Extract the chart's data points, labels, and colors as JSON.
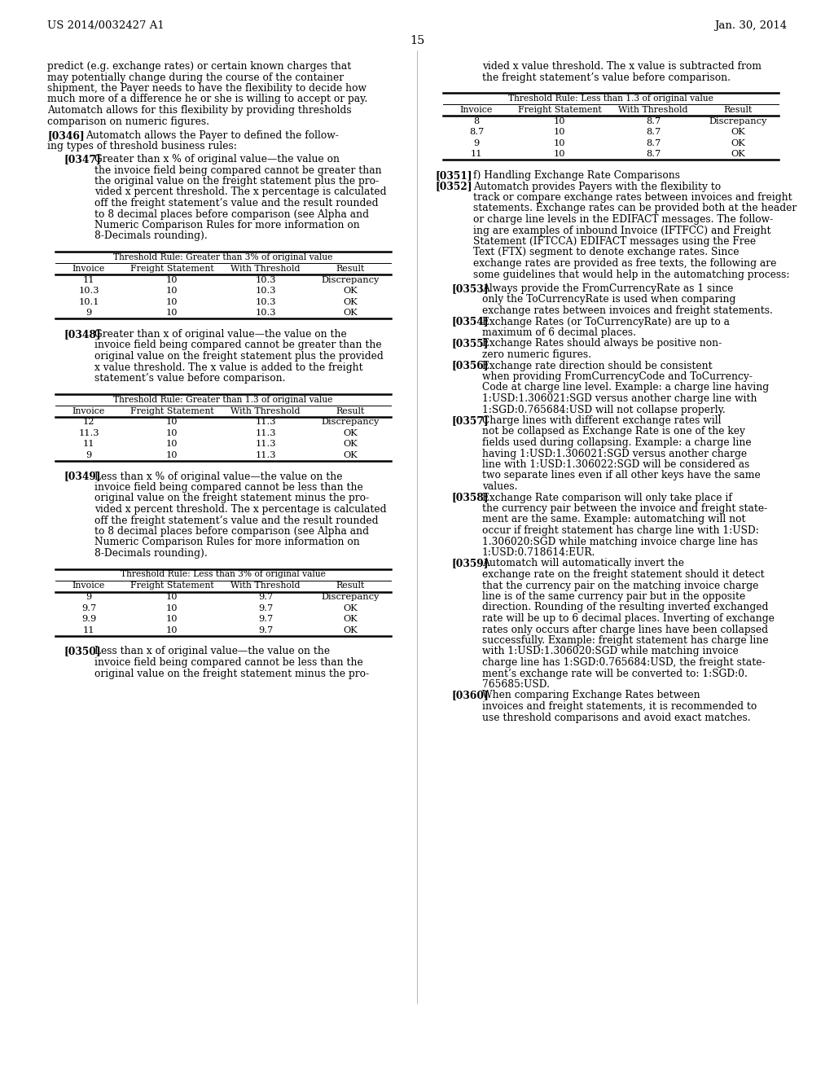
{
  "bg_color": "#ffffff",
  "header_left": "US 2014/0032427 A1",
  "header_right": "Jan. 30, 2014",
  "page_number": "15",
  "left_column": {
    "intro_text": [
      "predict (e.g. exchange rates) or certain known charges that",
      "may potentially change during the course of the container",
      "shipment, the Payer needs to have the flexibility to decide how",
      "much more of a difference he or she is willing to accept or pay.",
      "Automatch allows for this flexibility by providing thresholds",
      "comparison on numeric figures."
    ],
    "para0346_label": "[0346]",
    "para0346_text": [
      "Automatch allows the Payer to defined the follow-",
      "ing types of threshold business rules:"
    ],
    "para0347_label": "[0347]",
    "para0347_text": [
      "Greater than x % of original value—the value on",
      "the invoice field being compared cannot be greater than",
      "the original value on the freight statement plus the pro-",
      "vided x percent threshold. The x percentage is calculated",
      "off the freight statement’s value and the result rounded",
      "to 8 decimal places before comparison (see Alpha and",
      "Numeric Comparison Rules for more information on",
      "8-Decimals rounding)."
    ],
    "table1": {
      "title": "Threshold Rule: Greater than 3% of original value",
      "headers": [
        "Invoice",
        "Freight Statement",
        "With Threshold",
        "Result"
      ],
      "rows": [
        [
          "11",
          "10",
          "10.3",
          "Discrepancy"
        ],
        [
          "10.3",
          "10",
          "10.3",
          "OK"
        ],
        [
          "10.1",
          "10",
          "10.3",
          "OK"
        ],
        [
          "9",
          "10",
          "10.3",
          "OK"
        ]
      ]
    },
    "para0348_label": "[0348]",
    "para0348_text": [
      "Greater than x of original value—the value on the",
      "invoice field being compared cannot be greater than the",
      "original value on the freight statement plus the provided",
      "x value threshold. The x value is added to the freight",
      "statement’s value before comparison."
    ],
    "table2": {
      "title": "Threshold Rule: Greater than 1.3 of original value",
      "headers": [
        "Invoice",
        "Freight Statement",
        "With Threshold",
        "Result"
      ],
      "rows": [
        [
          "12",
          "10",
          "11.3",
          "Discrepancy"
        ],
        [
          "11.3",
          "10",
          "11.3",
          "OK"
        ],
        [
          "11",
          "10",
          "11.3",
          "OK"
        ],
        [
          "9",
          "10",
          "11.3",
          "OK"
        ]
      ]
    },
    "para0349_label": "[0349]",
    "para0349_text": [
      "Less than x % of original value—the value on the",
      "invoice field being compared cannot be less than the",
      "original value on the freight statement minus the pro-",
      "vided x percent threshold. The x percentage is calculated",
      "off the freight statement’s value and the result rounded",
      "to 8 decimal places before comparison (see Alpha and",
      "Numeric Comparison Rules for more information on",
      "8-Decimals rounding)."
    ],
    "table3": {
      "title": "Threshold Rule: Less than 3% of original value",
      "headers": [
        "Invoice",
        "Freight Statement",
        "With Threshold",
        "Result"
      ],
      "rows": [
        [
          "9",
          "10",
          "9.7",
          "Discrepancy"
        ],
        [
          "9.7",
          "10",
          "9.7",
          "OK"
        ],
        [
          "9.9",
          "10",
          "9.7",
          "OK"
        ],
        [
          "11",
          "10",
          "9.7",
          "OK"
        ]
      ]
    },
    "para0350_label": "[0350]",
    "para0350_text": [
      "Less than x of original value—the value on the",
      "invoice field being compared cannot be less than the",
      "original value on the freight statement minus the pro-"
    ]
  },
  "right_column": {
    "intro_text": [
      "vided x value threshold. The x value is subtracted from",
      "the freight statement’s value before comparison."
    ],
    "table4": {
      "title": "Threshold Rule: Less than 1.3 of original value",
      "headers": [
        "Invoice",
        "Freight Statement",
        "With Threshold",
        "Result"
      ],
      "rows": [
        [
          "8",
          "10",
          "8.7",
          "Discrepancy"
        ],
        [
          "8.7",
          "10",
          "8.7",
          "OK"
        ],
        [
          "9",
          "10",
          "8.7",
          "OK"
        ],
        [
          "11",
          "10",
          "8.7",
          "OK"
        ]
      ]
    },
    "para0351_label": "[0351]",
    "para0351_text": "f) Handling Exchange Rate Comparisons",
    "para0352_label": "[0352]",
    "para0352_text": [
      "Automatch provides Payers with the flexibility to",
      "track or compare exchange rates between invoices and freight",
      "statements. Exchange rates can be provided both at the header",
      "or charge line levels in the EDIFACT messages. The follow-",
      "ing are examples of inbound Invoice (IFTFCC) and Freight",
      "Statement (IFTCCA) EDIFACT messages using the Free",
      "Text (FTX) segment to denote exchange rates. Since",
      "exchange rates are provided as free texts, the following are",
      "some guidelines that would help in the automatching process:"
    ],
    "para0353_label": "[0353]",
    "para0353_text": [
      "Always provide the FromCurrencyRate as 1 since",
      "only the ToCurrencyRate is used when comparing",
      "exchange rates between invoices and freight statements."
    ],
    "para0354_label": "[0354]",
    "para0354_text": [
      "Exchange Rates (or ToCurrencyRate) are up to a",
      "maximum of 6 decimal places."
    ],
    "para0355_label": "[0355]",
    "para0355_text": [
      "Exchange Rates should always be positive non-",
      "zero numeric figures."
    ],
    "para0356_label": "[0356]",
    "para0356_text": [
      "Exchange rate direction should be consistent",
      "when providing FromCurrencyCode and ToCurrency-",
      "Code at charge line level. Example: a charge line having",
      "1:USD:1.306021:SGD versus another charge line with",
      "1:SGD:0.765684:USD will not collapse properly."
    ],
    "para0357_label": "[0357]",
    "para0357_text": [
      "Charge lines with different exchange rates will",
      "not be collapsed as Exchange Rate is one of the key",
      "fields used during collapsing. Example: a charge line",
      "having 1:USD:1.306021:SGD versus another charge",
      "line with 1:USD:1.306022:SGD will be considered as",
      "two separate lines even if all other keys have the same",
      "values."
    ],
    "para0358_label": "[0358]",
    "para0358_text": [
      "Exchange Rate comparison will only take place if",
      "the currency pair between the invoice and freight state-",
      "ment are the same. Example: automatching will not",
      "occur if freight statement has charge line with 1:USD:",
      "1.306020:SGD while matching invoice charge line has",
      "1:USD:0.718614:EUR."
    ],
    "para0359_label": "[0359]",
    "para0359_text": [
      "Automatch will automatically invert the",
      "exchange rate on the freight statement should it detect",
      "that the currency pair on the matching invoice charge",
      "line is of the same currency pair but in the opposite",
      "direction. Rounding of the resulting inverted exchanged",
      "rate will be up to 6 decimal places. Inverting of exchange",
      "rates only occurs after charge lines have been collapsed",
      "successfully. Example: freight statement has charge line",
      "with 1:USD:1.306020:SGD while matching invoice",
      "charge line has 1:SGD:0.765684:USD, the freight state-",
      "ment’s exchange rate will be converted to: 1:SGD:0.",
      "765685:USD."
    ],
    "para0360_label": "[0360]",
    "para0360_text": [
      "When comparing Exchange Rates between",
      "invoices and freight statements, it is recommended to",
      "use threshold comparisons and avoid exact matches."
    ]
  }
}
